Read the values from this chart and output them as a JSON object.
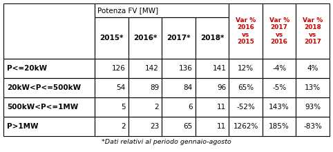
{
  "title": "*Dati relativi al periodo gennaio-agosto",
  "header_span": "Potenza FV [MW]",
  "year_headers": [
    "2015*",
    "2016*",
    "2017*",
    "2018*"
  ],
  "var_headers": [
    "Var %\n2016\nvs\n2015",
    "Var %\n2017\nvs\n2016",
    "Var %\n2018\nvs\n2017"
  ],
  "row_labels": [
    "P<=20kW",
    "20kW<P<=500kW",
    "500kW<P<=1MW",
    "P>1MW"
  ],
  "num_data": [
    [
      126,
      142,
      136,
      141
    ],
    [
      54,
      89,
      84,
      96
    ],
    [
      5,
      2,
      6,
      11
    ],
    [
      2,
      23,
      65,
      11
    ]
  ],
  "var_data": [
    [
      "12%",
      "-4%",
      "4%"
    ],
    [
      "65%",
      "-5%",
      "13%"
    ],
    [
      "-52%",
      "143%",
      "93%"
    ],
    [
      "1262%",
      "185%",
      "-83%"
    ]
  ],
  "bg_color": "#ffffff",
  "text_color": "#000000",
  "var_color": "#cc0000",
  "lw": 0.8,
  "fig_w": 4.82,
  "fig_h": 2.2,
  "dpi": 100
}
